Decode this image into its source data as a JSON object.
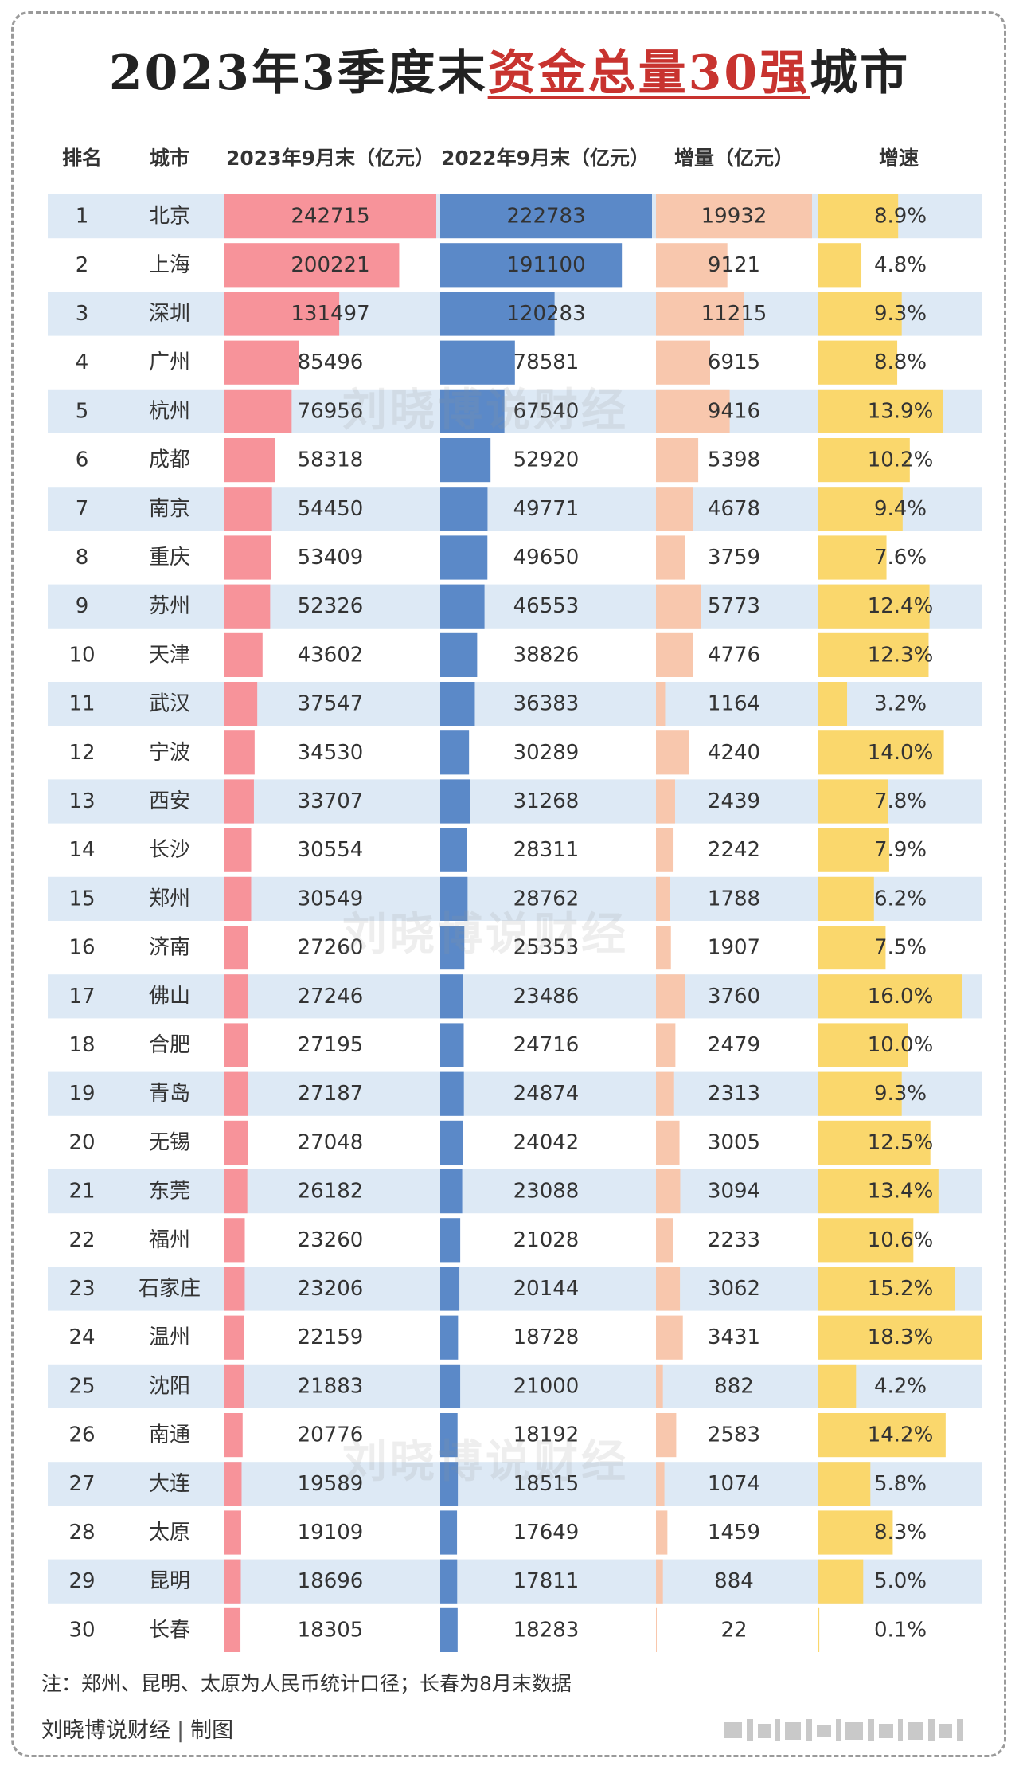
{
  "title": {
    "pre": "2023年3季度末",
    "highlight": "资金总量30强",
    "post": "城市"
  },
  "watermark": "刘晓博说财经",
  "footer": {
    "note": "注：郑州、昆明、太原为人民币统计口径；长春为8月末数据",
    "credit_name": "刘晓博说财经",
    "credit_sep": "|",
    "credit_suffix": "制图"
  },
  "colors": {
    "bar_2023": "#f7939a",
    "bar_2022": "#5b89c8",
    "bar_increase": "#f8c7ad",
    "bar_growth": "#fad76c",
    "row_stripe": "#dde9f5",
    "title_highlight": "#c8332f"
  },
  "chart_data": {
    "type": "table",
    "columns": [
      "排名",
      "城市",
      "2023年9月末（亿元）",
      "2022年9月末（亿元）",
      "增量（亿元）",
      "增速"
    ],
    "rows": [
      {
        "rank": "1",
        "city": "北京",
        "v2023": 242715,
        "v2022": 222783,
        "inc": 19932,
        "growth": "8.9%"
      },
      {
        "rank": "2",
        "city": "上海",
        "v2023": 200221,
        "v2022": 191100,
        "inc": 9121,
        "growth": "4.8%"
      },
      {
        "rank": "3",
        "city": "深圳",
        "v2023": 131497,
        "v2022": 120283,
        "inc": 11215,
        "growth": "9.3%"
      },
      {
        "rank": "4",
        "city": "广州",
        "v2023": 85496,
        "v2022": 78581,
        "inc": 6915,
        "growth": "8.8%"
      },
      {
        "rank": "5",
        "city": "杭州",
        "v2023": 76956,
        "v2022": 67540,
        "inc": 9416,
        "growth": "13.9%"
      },
      {
        "rank": "6",
        "city": "成都",
        "v2023": 58318,
        "v2022": 52920,
        "inc": 5398,
        "growth": "10.2%"
      },
      {
        "rank": "7",
        "city": "南京",
        "v2023": 54450,
        "v2022": 49771,
        "inc": 4678,
        "growth": "9.4%"
      },
      {
        "rank": "8",
        "city": "重庆",
        "v2023": 53409,
        "v2022": 49650,
        "inc": 3759,
        "growth": "7.6%"
      },
      {
        "rank": "9",
        "city": "苏州",
        "v2023": 52326,
        "v2022": 46553,
        "inc": 5773,
        "growth": "12.4%"
      },
      {
        "rank": "10",
        "city": "天津",
        "v2023": 43602,
        "v2022": 38826,
        "inc": 4776,
        "growth": "12.3%"
      },
      {
        "rank": "11",
        "city": "武汉",
        "v2023": 37547,
        "v2022": 36383,
        "inc": 1164,
        "growth": "3.2%"
      },
      {
        "rank": "12",
        "city": "宁波",
        "v2023": 34530,
        "v2022": 30289,
        "inc": 4240,
        "growth": "14.0%"
      },
      {
        "rank": "13",
        "city": "西安",
        "v2023": 33707,
        "v2022": 31268,
        "inc": 2439,
        "growth": "7.8%"
      },
      {
        "rank": "14",
        "city": "长沙",
        "v2023": 30554,
        "v2022": 28311,
        "inc": 2242,
        "growth": "7.9%"
      },
      {
        "rank": "15",
        "city": "郑州",
        "v2023": 30549,
        "v2022": 28762,
        "inc": 1788,
        "growth": "6.2%"
      },
      {
        "rank": "16",
        "city": "济南",
        "v2023": 27260,
        "v2022": 25353,
        "inc": 1907,
        "growth": "7.5%"
      },
      {
        "rank": "17",
        "city": "佛山",
        "v2023": 27246,
        "v2022": 23486,
        "inc": 3760,
        "growth": "16.0%"
      },
      {
        "rank": "18",
        "city": "合肥",
        "v2023": 27195,
        "v2022": 24716,
        "inc": 2479,
        "growth": "10.0%"
      },
      {
        "rank": "19",
        "city": "青岛",
        "v2023": 27187,
        "v2022": 24874,
        "inc": 2313,
        "growth": "9.3%"
      },
      {
        "rank": "20",
        "city": "无锡",
        "v2023": 27048,
        "v2022": 24042,
        "inc": 3005,
        "growth": "12.5%"
      },
      {
        "rank": "21",
        "city": "东莞",
        "v2023": 26182,
        "v2022": 23088,
        "inc": 3094,
        "growth": "13.4%"
      },
      {
        "rank": "22",
        "city": "福州",
        "v2023": 23260,
        "v2022": 21028,
        "inc": 2233,
        "growth": "10.6%"
      },
      {
        "rank": "23",
        "city": "石家庄",
        "v2023": 23206,
        "v2022": 20144,
        "inc": 3062,
        "growth": "15.2%"
      },
      {
        "rank": "24",
        "city": "温州",
        "v2023": 22159,
        "v2022": 18728,
        "inc": 3431,
        "growth": "18.3%"
      },
      {
        "rank": "25",
        "city": "沈阳",
        "v2023": 21883,
        "v2022": 21000,
        "inc": 882,
        "growth": "4.2%"
      },
      {
        "rank": "26",
        "city": "南通",
        "v2023": 20776,
        "v2022": 18192,
        "inc": 2583,
        "growth": "14.2%"
      },
      {
        "rank": "27",
        "city": "大连",
        "v2023": 19589,
        "v2022": 18515,
        "inc": 1074,
        "growth": "5.8%"
      },
      {
        "rank": "28",
        "city": "太原",
        "v2023": 19109,
        "v2022": 17649,
        "inc": 1459,
        "growth": "8.3%"
      },
      {
        "rank": "29",
        "city": "昆明",
        "v2023": 18696,
        "v2022": 17811,
        "inc": 884,
        "growth": "5.0%"
      },
      {
        "rank": "30",
        "city": "长春",
        "v2023": 18305,
        "v2022": 18283,
        "inc": 22,
        "growth": "0.1%"
      }
    ]
  }
}
